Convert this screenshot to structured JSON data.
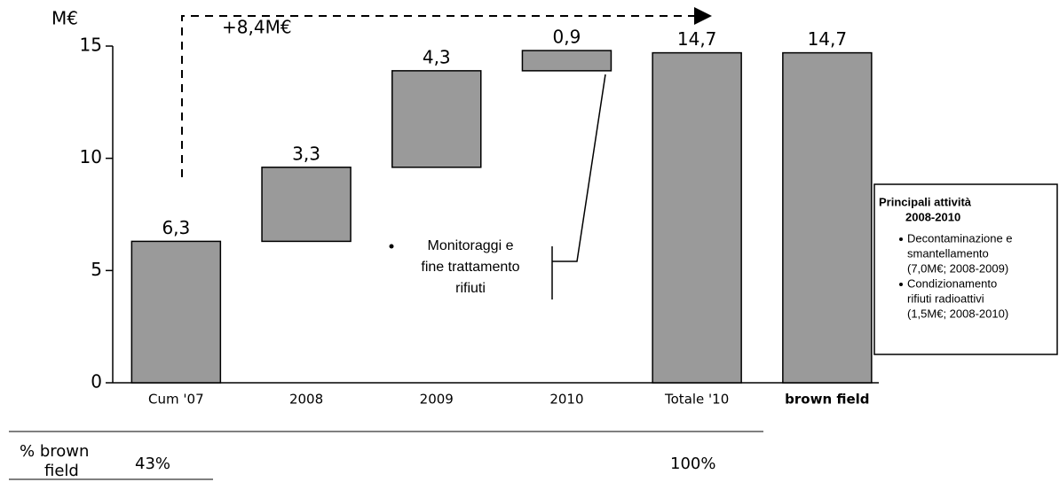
{
  "chart_data": {
    "type": "waterfall",
    "ylabel": "M€",
    "categories": [
      "Cum '07",
      "2008",
      "2009",
      "2010",
      "Totale '10",
      "brown field"
    ],
    "values": [
      6.3,
      3.3,
      4.3,
      0.9,
      14.7,
      14.7
    ],
    "value_labels": [
      "6,3",
      "3,3",
      "4,3",
      "0,9",
      "14,7",
      "14,7"
    ],
    "measure": [
      "absolute",
      "relative",
      "relative",
      "relative",
      "absolute",
      "absolute"
    ],
    "color": "#9a9a9a",
    "ylim": [
      0,
      15
    ],
    "yticks": [
      0,
      5,
      10,
      15
    ],
    "delta_label": "+8,4M€",
    "annotation": [
      "Monitoraggi e",
      "fine trattamento",
      "rifiuti"
    ],
    "side_box": {
      "title": [
        "Principali attività",
        "2008-2010"
      ],
      "items": [
        [
          "Decontaminazione e",
          "smantellamento",
          "(7,0M€; 2008-2009)"
        ],
        [
          "Condizionamento",
          "rifiuti radioattivi",
          "(1,5M€;  2008-2010)"
        ]
      ]
    },
    "table": {
      "label": [
        "% brown",
        "field"
      ],
      "values": [
        "43%",
        "100%"
      ]
    }
  }
}
